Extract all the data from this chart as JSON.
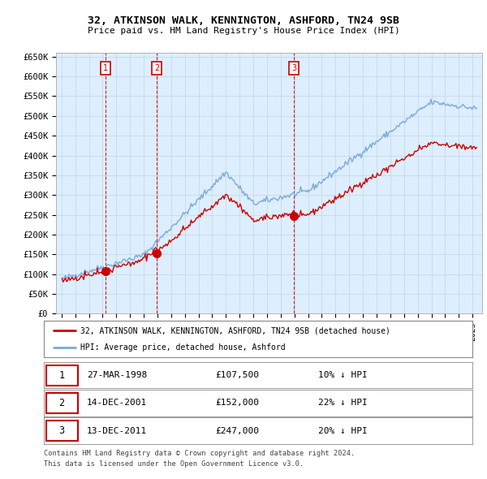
{
  "title": "32, ATKINSON WALK, KENNINGTON, ASHFORD, TN24 9SB",
  "subtitle": "Price paid vs. HM Land Registry's House Price Index (HPI)",
  "ylim": [
    0,
    660000
  ],
  "yticks": [
    0,
    50000,
    100000,
    150000,
    200000,
    250000,
    300000,
    350000,
    400000,
    450000,
    500000,
    550000,
    600000,
    650000
  ],
  "ytick_labels": [
    "£0",
    "£50K",
    "£100K",
    "£150K",
    "£200K",
    "£250K",
    "£300K",
    "£350K",
    "£400K",
    "£450K",
    "£500K",
    "£550K",
    "£600K",
    "£650K"
  ],
  "sale_dates": [
    1998.23,
    2001.96,
    2011.96
  ],
  "sale_prices": [
    107500,
    152000,
    247000
  ],
  "sale_labels": [
    "1",
    "2",
    "3"
  ],
  "legend_red": "32, ATKINSON WALK, KENNINGTON, ASHFORD, TN24 9SB (detached house)",
  "legend_blue": "HPI: Average price, detached house, Ashford",
  "table_rows": [
    [
      "1",
      "27-MAR-1998",
      "£107,500",
      "10% ↓ HPI"
    ],
    [
      "2",
      "14-DEC-2001",
      "£152,000",
      "22% ↓ HPI"
    ],
    [
      "3",
      "13-DEC-2011",
      "£247,000",
      "20% ↓ HPI"
    ]
  ],
  "footnote1": "Contains HM Land Registry data © Crown copyright and database right 2024.",
  "footnote2": "This data is licensed under the Open Government Licence v3.0.",
  "grid_color": "#c8d8e8",
  "hpi_color": "#7aaadd",
  "sale_color": "#cc0000",
  "vline_color": "#cc0000",
  "bg_color": "#ffffff",
  "chart_bg": "#ddeeff"
}
